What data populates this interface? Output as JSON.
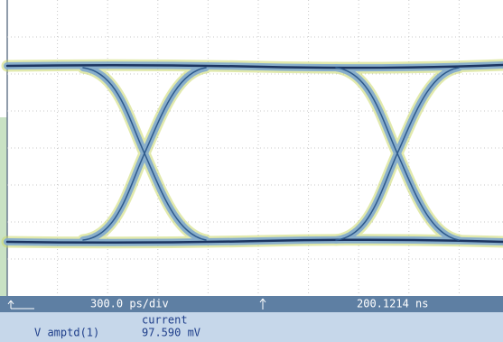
{
  "status_bar": {
    "timebase": "300.0 ps/div",
    "position": "200.1214 ns"
  },
  "measurement": {
    "column_header": "current",
    "label": "V amptd(1)",
    "value": "97.590 mV"
  }
}
